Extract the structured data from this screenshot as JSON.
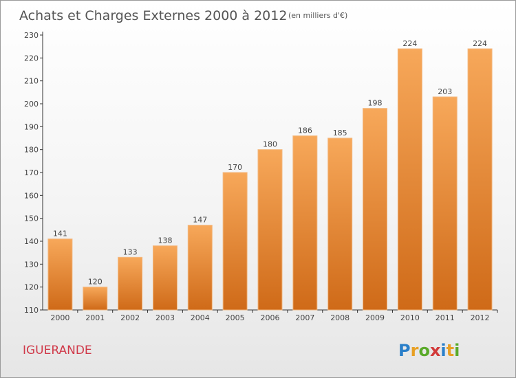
{
  "chart_data": {
    "type": "bar",
    "title": "Achats et Charges Externes 2000 à 2012",
    "subtitle": "(en milliers d'€)",
    "categories": [
      "2000",
      "2001",
      "2002",
      "2003",
      "2004",
      "2005",
      "2006",
      "2007",
      "2008",
      "2009",
      "2010",
      "2011",
      "2012"
    ],
    "values": [
      141,
      120,
      133,
      138,
      147,
      170,
      180,
      186,
      185,
      198,
      224,
      203,
      224
    ],
    "ylim": [
      110,
      230
    ],
    "yticks": [
      110,
      120,
      130,
      140,
      150,
      160,
      170,
      180,
      190,
      200,
      210,
      220,
      230
    ],
    "grid": false,
    "colors": {
      "bar_light": "#f7a85a",
      "bar_dark": "#cf6a18",
      "bar_edge": "#f3b981"
    }
  },
  "commune": "IGUERANDE",
  "brand": {
    "letters": [
      "P",
      "r",
      "o",
      "x",
      "i",
      "t",
      "i"
    ],
    "colors": [
      "#2a7fc9",
      "#e8a024",
      "#5aaa2a",
      "#d23a3a",
      "#2a7fc9",
      "#e8a024",
      "#5aaa2a"
    ]
  }
}
